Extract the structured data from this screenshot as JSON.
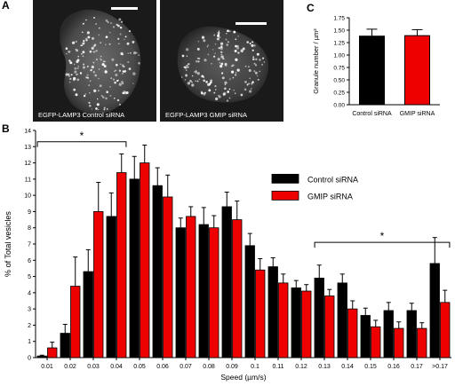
{
  "panel_a": {
    "letter": "A",
    "images": [
      {
        "label": "EGFP-LAMP3  Control siRNA"
      },
      {
        "label": "EGFP-LAMP3  GMIP siRNA"
      }
    ]
  },
  "panel_b": {
    "letter": "B"
  },
  "panel_c": {
    "letter": "C"
  },
  "chart_data": [
    {
      "panel": "C",
      "type": "bar",
      "categories": [
        "Control siRNA",
        "GMIP siRNA"
      ],
      "values": [
        1.38,
        1.39
      ],
      "errors": [
        0.14,
        0.12
      ],
      "colors": [
        "#000000",
        "#ee0000"
      ],
      "ylabel": "Granule number / µm²",
      "ylim": [
        0,
        1.75
      ],
      "yticks": [
        "0.00",
        "0.25",
        "0.50",
        "0.75",
        "1.00",
        "1.25",
        "1.50",
        "1.75"
      ]
    },
    {
      "panel": "B",
      "type": "bar",
      "xlabel": "Speed (µm/s)",
      "ylabel": "% of Total vesicles",
      "ylim": [
        0,
        14
      ],
      "yticks": [
        "0",
        "1",
        "2",
        "3",
        "4",
        "5",
        "6",
        "7",
        "8",
        "9",
        "10",
        "11",
        "12",
        "13",
        "14"
      ],
      "categories": [
        "0.01",
        "0.02",
        "0.03",
        "0.04",
        "0.05",
        "0.06",
        "0.07",
        "0.08",
        "0.09",
        "0.1",
        "0.11",
        "0.12",
        "0.13",
        "0.14",
        "0.15",
        "0.16",
        "0.17",
        ">0.17"
      ],
      "legend_position": "right",
      "series": [
        {
          "name": "Control siRNA",
          "color": "#000000",
          "values": [
            0.1,
            1.5,
            5.3,
            8.7,
            11.0,
            10.6,
            8.0,
            8.2,
            9.3,
            6.9,
            5.6,
            4.3,
            4.9,
            4.6,
            2.6,
            2.9,
            2.9,
            5.8
          ],
          "errors": [
            0.05,
            0.55,
            1.35,
            1.45,
            1.4,
            1.1,
            0.6,
            1.05,
            0.9,
            0.75,
            0.55,
            0.45,
            0.8,
            0.55,
            0.45,
            0.5,
            0.45,
            1.6
          ]
        },
        {
          "name": "GMIP siRNA",
          "color": "#ee0000",
          "values": [
            0.6,
            4.4,
            9.0,
            11.4,
            12.0,
            9.9,
            8.7,
            8.0,
            8.5,
            5.4,
            4.6,
            4.1,
            3.8,
            3.0,
            1.9,
            1.8,
            1.8,
            3.4
          ],
          "errors": [
            0.35,
            1.8,
            1.8,
            1.15,
            1.1,
            1.35,
            0.6,
            0.75,
            1.15,
            0.7,
            0.55,
            0.4,
            0.4,
            0.5,
            0.4,
            0.4,
            0.35,
            0.75
          ]
        }
      ],
      "significance": [
        {
          "label": "*",
          "from": "0.01",
          "to": "0.04"
        },
        {
          "label": "*",
          "from": "0.13",
          "to": ">0.17"
        }
      ]
    }
  ]
}
